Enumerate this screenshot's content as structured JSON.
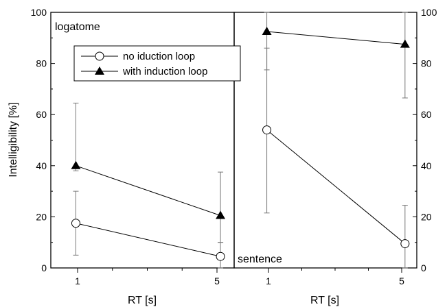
{
  "chart_data": [
    {
      "type": "line",
      "panel": "logatome",
      "xlabel": "RT [s]",
      "ylabel": "Intelligibility [%]",
      "ylim": [
        0,
        100
      ],
      "yticks": [
        "0",
        "20",
        "40",
        "60",
        "80",
        "100"
      ],
      "xticks": [
        {
          "label": "1",
          "value": 1
        },
        {
          "label": "5",
          "value": 5
        }
      ],
      "legend_position": "top-center",
      "series": [
        {
          "name": "no iduction loop",
          "marker": "open-circle",
          "x": [
            0.95,
            5.1
          ],
          "y": [
            17.5,
            4.5
          ],
          "err_low": [
            5,
            0
          ],
          "err_high": [
            30,
            10
          ]
        },
        {
          "name": "with induction loop",
          "marker": "filled-triangle",
          "x": [
            0.95,
            5.1
          ],
          "y": [
            40,
            20.5
          ],
          "err_low": [
            38,
            10
          ],
          "err_high": [
            64.5,
            37.5
          ]
        }
      ]
    },
    {
      "type": "line",
      "panel": "sentence",
      "xlabel": "RT [s]",
      "ylim": [
        0,
        100
      ],
      "yticks": [
        "0",
        "20",
        "40",
        "60",
        "80",
        "100"
      ],
      "xticks": [
        {
          "label": "1",
          "value": 1
        },
        {
          "label": "5",
          "value": 5
        }
      ],
      "series": [
        {
          "name": "no iduction loop",
          "marker": "open-circle",
          "x": [
            0.95,
            5.1
          ],
          "y": [
            54,
            9.5
          ],
          "err_low": [
            21.5,
            0
          ],
          "err_high": [
            86,
            24.5
          ]
        },
        {
          "name": "with induction loop",
          "marker": "filled-triangle",
          "x": [
            0.95,
            5.1
          ],
          "y": [
            92.5,
            87.5
          ],
          "err_low": [
            77.5,
            66.5
          ],
          "err_high": [
            100,
            100
          ]
        }
      ]
    }
  ]
}
